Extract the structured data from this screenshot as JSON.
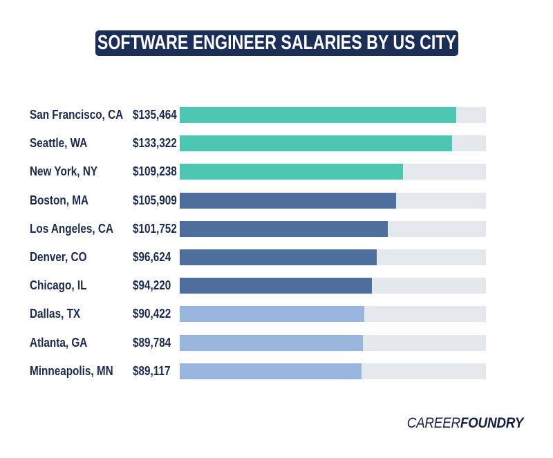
{
  "page": {
    "background": "#ffffff"
  },
  "header": {
    "title": "SOFTWARE ENGINEER SALARIES BY US CITY",
    "banner_color": "#1b2e55",
    "title_color": "#ffffff"
  },
  "colors": {
    "teal": "#4ec7b2",
    "slate": "#4e6e9d",
    "light_blue": "#98b6dd",
    "track": "#e4e8ec",
    "text_navy": "#1b2a4d",
    "logo_navy": "#13203d"
  },
  "chart_data": {
    "type": "bar",
    "orientation": "horizontal",
    "title": "SOFTWARE ENGINEER SALARIES BY US CITY",
    "xlabel": "",
    "ylabel": "",
    "xlim": [
      0,
      150000
    ],
    "grid": false,
    "legend": false,
    "categories": [
      "San Francisco, CA",
      "Seattle, WA",
      "New York, NY",
      "Boston, MA",
      "Los Angeles, CA",
      "Denver, CO",
      "Chicago, IL",
      "Dallas, TX",
      "Atlanta, GA",
      "Minneapolis, MN"
    ],
    "values": [
      135464,
      133322,
      109238,
      105909,
      101752,
      96624,
      94220,
      90422,
      89784,
      89117
    ],
    "rows": [
      {
        "city": "San Francisco, CA",
        "salary": 135464,
        "salary_label": "$135,464",
        "color": "teal"
      },
      {
        "city": "Seattle, WA",
        "salary": 133322,
        "salary_label": "$133,322",
        "color": "teal"
      },
      {
        "city": "New York, NY",
        "salary": 109238,
        "salary_label": "$109,238",
        "color": "teal"
      },
      {
        "city": "Boston, MA",
        "salary": 105909,
        "salary_label": "$105,909",
        "color": "slate"
      },
      {
        "city": "Los Angeles, CA",
        "salary": 101752,
        "salary_label": "$101,752",
        "color": "slate"
      },
      {
        "city": "Denver, CO",
        "salary": 96624,
        "salary_label": "$96,624",
        "color": "slate"
      },
      {
        "city": "Chicago, IL",
        "salary": 94220,
        "salary_label": "$94,220",
        "color": "slate"
      },
      {
        "city": "Dallas, TX",
        "salary": 90422,
        "salary_label": "$90,422",
        "color": "light_blue"
      },
      {
        "city": "Atlanta, GA",
        "salary": 89784,
        "salary_label": "$89,784",
        "color": "light_blue"
      },
      {
        "city": "Minneapolis, MN",
        "salary": 89117,
        "salary_label": "$89,117",
        "color": "light_blue"
      }
    ]
  },
  "footer": {
    "brand_first": "CAREER",
    "brand_second": "FOUNDRY"
  }
}
